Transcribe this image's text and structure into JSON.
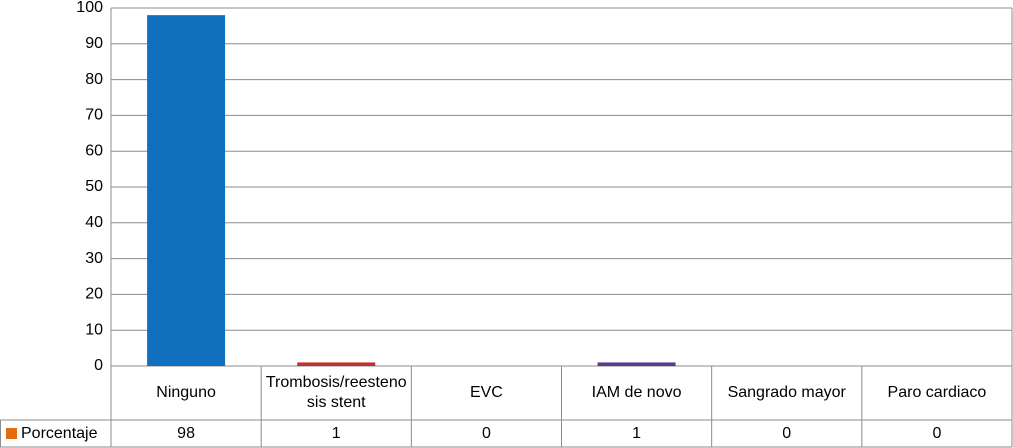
{
  "chart_data": {
    "type": "bar",
    "categories": [
      "Ninguno",
      "Trombosis/reestenosis stent",
      "EVC",
      "IAM de novo",
      "Sangrado mayor",
      "Paro cardiaco"
    ],
    "series": [
      {
        "name": "Porcentaje",
        "color": "#e46c0a",
        "values": [
          98,
          1,
          0,
          1,
          0,
          0
        ],
        "bar_colors": [
          "#1070be",
          "#c0302c",
          "#8fb04a",
          "#5b3a8e",
          "#2d9fc2",
          "#f0862a"
        ]
      }
    ],
    "ylim": [
      0,
      100
    ],
    "yticks": [
      0,
      10,
      20,
      30,
      40,
      50,
      60,
      70,
      80,
      90,
      100
    ],
    "grid": true
  }
}
